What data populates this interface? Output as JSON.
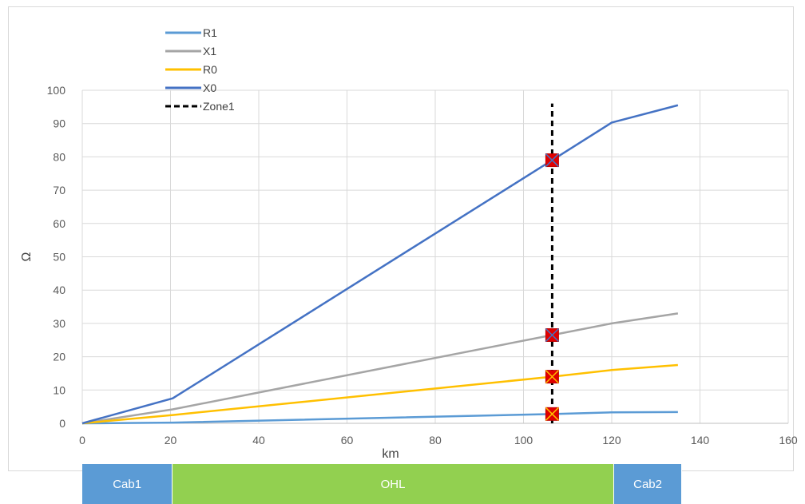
{
  "chart_data": {
    "type": "line",
    "xlabel": "km",
    "ylabel": "Ω",
    "xlim": [
      0,
      160
    ],
    "ylim": [
      0,
      100
    ],
    "x_ticks": [
      0,
      20,
      40,
      60,
      80,
      100,
      120,
      140,
      160
    ],
    "y_ticks": [
      0,
      10,
      20,
      30,
      40,
      50,
      60,
      70,
      80,
      90,
      100
    ],
    "grid": true,
    "legend_position": "top-left",
    "series": [
      {
        "name": "R1",
        "color": "#5b9bd5",
        "style": "solid",
        "x": [
          0,
          20.5,
          106.5,
          120,
          135
        ],
        "y": [
          0,
          0.2,
          2.8,
          3.3,
          3.4
        ]
      },
      {
        "name": "X1",
        "color": "#a5a5a5",
        "style": "solid",
        "x": [
          0,
          20.5,
          106.5,
          120,
          135
        ],
        "y": [
          0,
          4.2,
          26.5,
          30,
          33
        ]
      },
      {
        "name": "R0",
        "color": "#ffc000",
        "style": "solid",
        "x": [
          0,
          20.5,
          106.5,
          120,
          135
        ],
        "y": [
          0,
          2.5,
          14,
          16,
          17.5
        ]
      },
      {
        "name": "X0",
        "color": "#4472c4",
        "style": "solid",
        "x": [
          0,
          20.5,
          106.5,
          120,
          135
        ],
        "y": [
          0,
          7.5,
          79,
          90.3,
          95.5
        ]
      },
      {
        "name": "Zone1",
        "color": "#000000",
        "style": "dashed",
        "x": [
          106.5,
          106.5
        ],
        "y": [
          0,
          96
        ]
      }
    ],
    "markers": [
      {
        "series": "X0",
        "x": 106.5,
        "y": 79,
        "fill": "#e00000",
        "cross": "#4472c4"
      },
      {
        "series": "X1",
        "x": 106.5,
        "y": 26.5,
        "fill": "#e00000",
        "cross": "#4472c4"
      },
      {
        "series": "R0",
        "x": 106.5,
        "y": 14,
        "fill": "#e00000",
        "cross": "#ffc000"
      },
      {
        "series": "R1",
        "x": 106.5,
        "y": 2.8,
        "fill": "#e00000",
        "cross": "#ffc000"
      }
    ],
    "sections": [
      {
        "label": "Cab1",
        "from": 0,
        "to": 20.5,
        "color": "#5b9bd5"
      },
      {
        "label": "OHL",
        "from": 20.5,
        "to": 120.5,
        "color": "#92d050"
      },
      {
        "label": "Cab2",
        "from": 120.5,
        "to": 136,
        "color": "#5b9bd5"
      }
    ]
  }
}
